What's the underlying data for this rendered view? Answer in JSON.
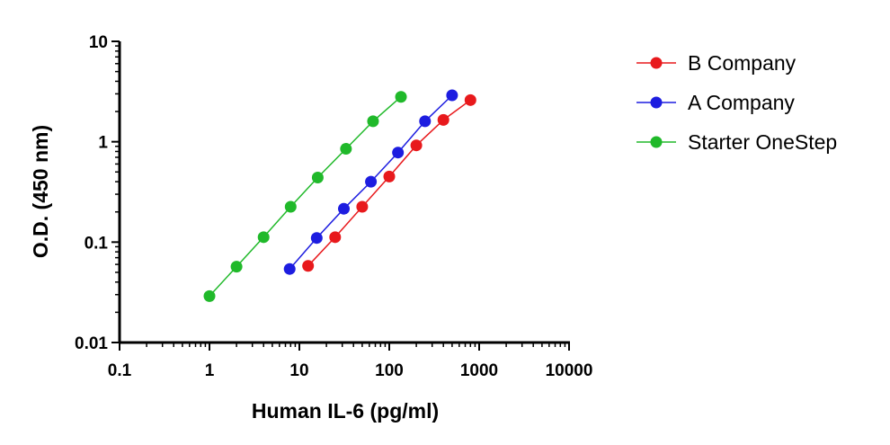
{
  "chart_data": {
    "type": "scatter",
    "xscale": "log",
    "yscale": "log",
    "xlim": [
      0.1,
      10000
    ],
    "ylim": [
      0.01,
      10
    ],
    "xlabel": "Human IL-6 (pg/ml)",
    "ylabel": "O.D. (450 nm)",
    "x_ticks": [
      "0.1",
      "1",
      "10",
      "100",
      "1000",
      "10000"
    ],
    "y_ticks": [
      "0.01",
      "0.1",
      "1",
      "10"
    ],
    "grid": false,
    "legend_position": "right",
    "series": [
      {
        "name": "B Company",
        "color": "#e8191c",
        "x": [
          12.5,
          25,
          50,
          100,
          200,
          400,
          800
        ],
        "y": [
          0.058,
          0.112,
          0.225,
          0.45,
          0.92,
          1.65,
          2.6
        ]
      },
      {
        "name": "A Company",
        "color": "#1d1de0",
        "x": [
          7.8,
          15.6,
          31.25,
          62.5,
          125,
          250,
          500
        ],
        "y": [
          0.054,
          0.11,
          0.215,
          0.4,
          0.78,
          1.6,
          2.9
        ]
      },
      {
        "name": "Starter OneStep",
        "color": "#20b92a",
        "x": [
          1,
          2,
          4,
          8,
          16,
          33,
          66,
          135
        ],
        "y": [
          0.029,
          0.057,
          0.112,
          0.225,
          0.44,
          0.85,
          1.6,
          2.8
        ]
      }
    ]
  }
}
